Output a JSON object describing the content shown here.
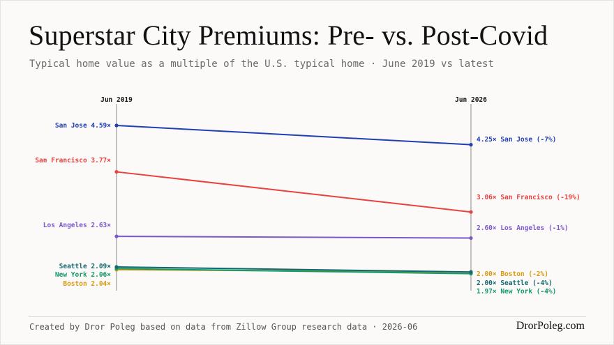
{
  "title": "Superstar City Premiums: Pre- vs. Post-Covid",
  "subtitle": "Typical home value as a multiple of the U.S. typical home · June 2019 vs latest",
  "footer": {
    "credit": "Created by Dror Poleg based on data from Zillow Group research data · 2026-06",
    "brand": "DrorPoleg.com"
  },
  "chart_data": {
    "type": "line",
    "x": [
      "Jun 2019",
      "Jun 2026"
    ],
    "grid": false,
    "series": [
      {
        "name": "San Jose",
        "values": [
          4.59,
          4.25
        ],
        "color": "#1f3fb5",
        "left_label": "San Jose 4.59×",
        "right_label": "4.25× San Jose (-7%)"
      },
      {
        "name": "San Francisco",
        "values": [
          3.77,
          3.06
        ],
        "color": "#e8423f",
        "left_label": "San Francisco 3.77×",
        "right_label": "3.06× San Francisco (-19%)"
      },
      {
        "name": "Los Angeles",
        "values": [
          2.63,
          2.6
        ],
        "color": "#7b58c9",
        "left_label": "Los Angeles 2.63×",
        "right_label": "2.60× Los Angeles (-1%)"
      },
      {
        "name": "Seattle",
        "values": [
          2.09,
          2.0
        ],
        "color": "#12686e",
        "left_label": "Seattle 2.09×",
        "right_label": "2.00× Seattle (-4%)"
      },
      {
        "name": "New York",
        "values": [
          2.06,
          1.97
        ],
        "color": "#119a6b",
        "left_label": "New York 2.06×",
        "right_label": "1.97× New York (-4%)"
      },
      {
        "name": "Boston",
        "values": [
          2.04,
          2.0
        ],
        "color": "#d89a10",
        "left_label": "Boston 2.04×",
        "right_label": "2.00× Boston (-2%)"
      }
    ]
  }
}
